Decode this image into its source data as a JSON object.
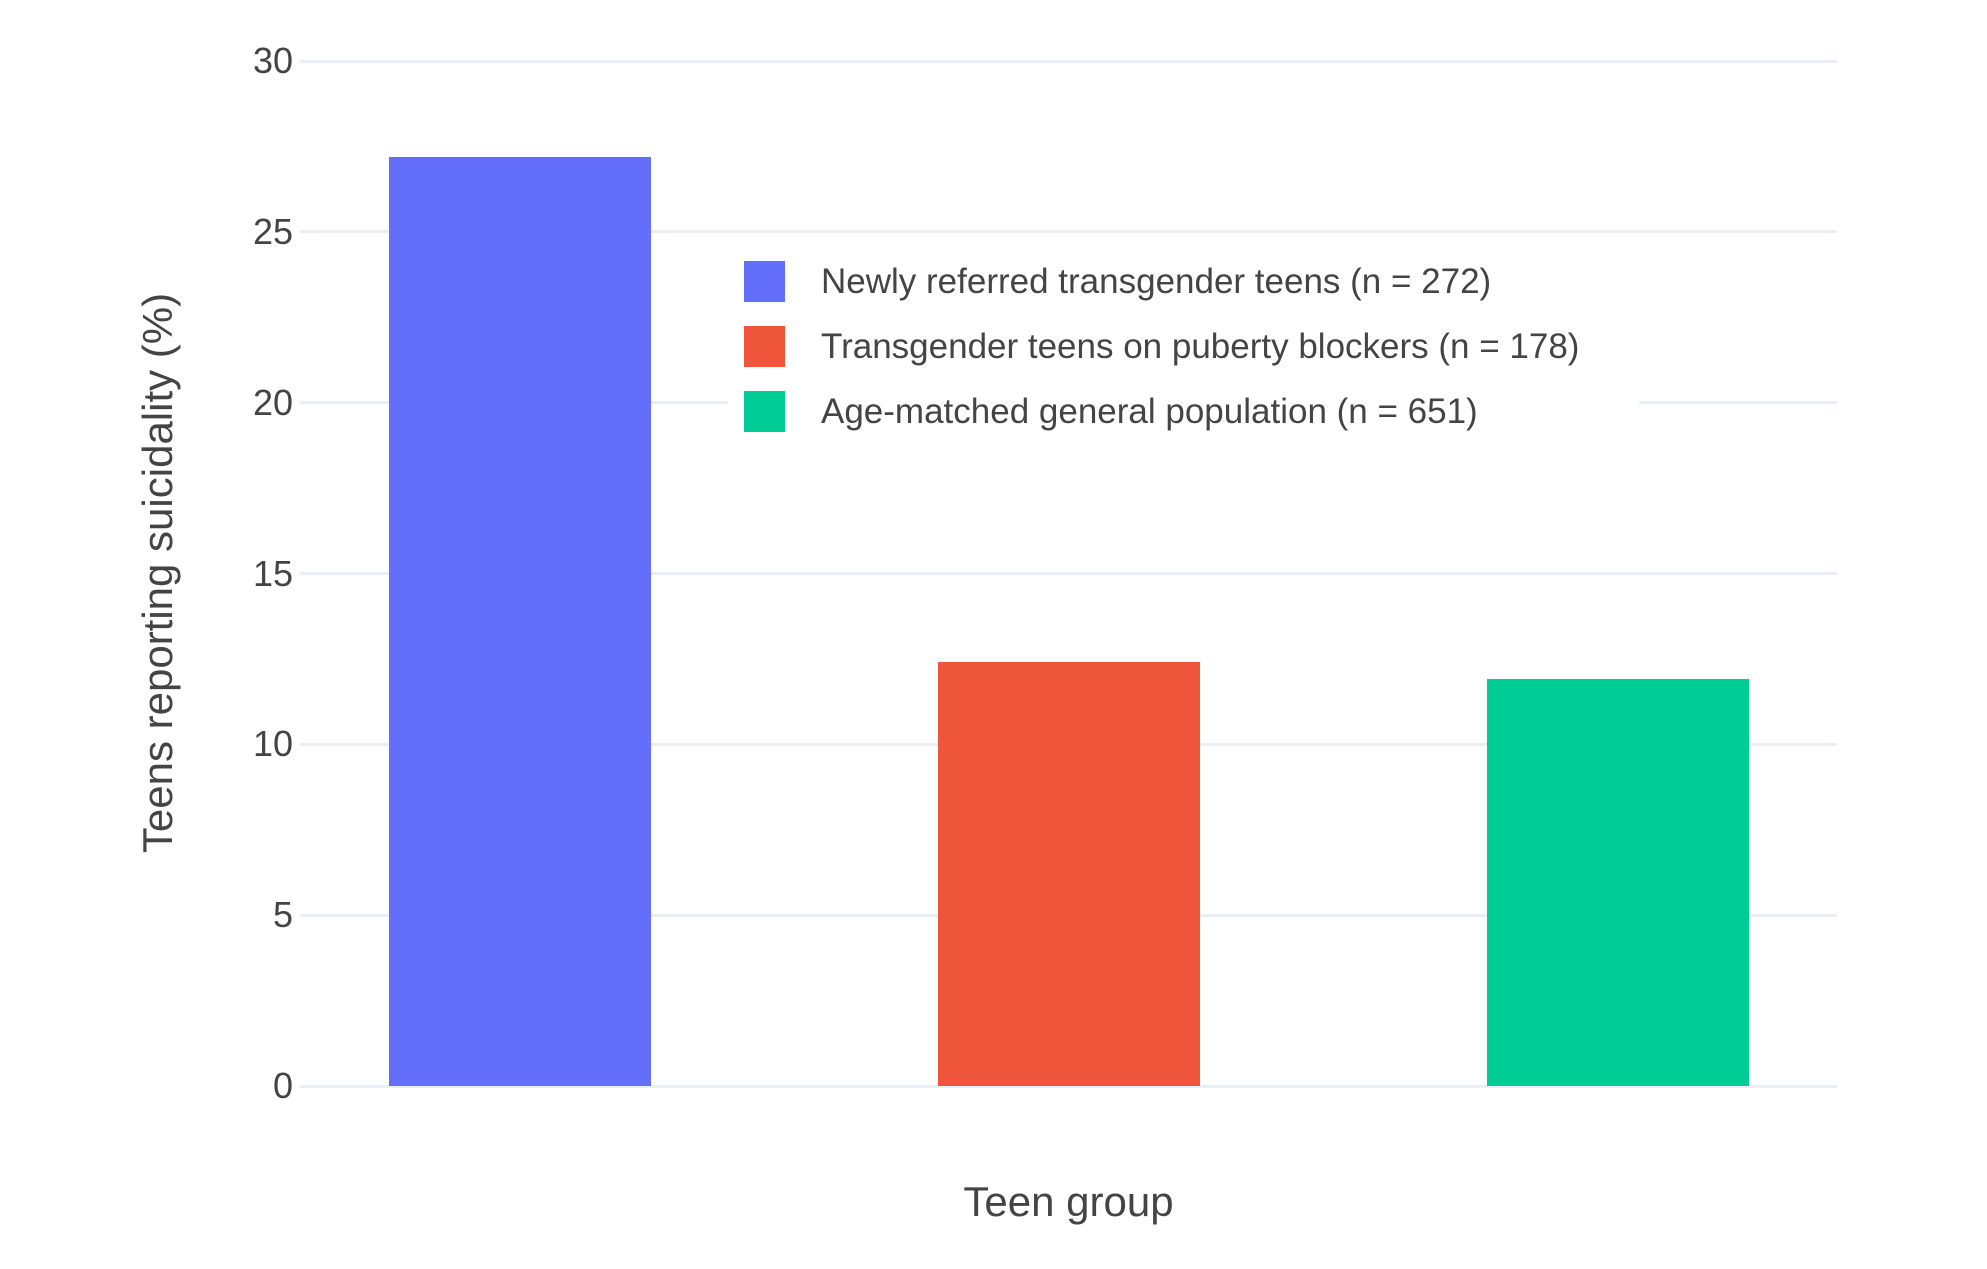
{
  "chart_data": {
    "type": "bar",
    "title": "",
    "xlabel": "Teen group",
    "ylabel": "Teens reporting suicidality (%)",
    "categories": [
      "Newly referred transgender teens",
      "Transgender teens on puberty blockers",
      "Age-matched general population"
    ],
    "values": [
      27.2,
      12.4,
      11.9
    ],
    "bar_colors": [
      "#636efa",
      "#ef553b",
      "#00cc96"
    ],
    "ylim": [
      0,
      30
    ],
    "yticks": [
      0,
      5,
      10,
      15,
      20,
      25,
      30
    ],
    "grid": true,
    "gridline_color": "#e9eef7",
    "background_color": "#ffffff",
    "text_color": "#444444",
    "legend": {
      "position": "inside-top-center",
      "entries": [
        {
          "label": "Newly referred transgender teens (n = 272)",
          "color": "#636efa"
        },
        {
          "label": "Transgender teens on puberty blockers (n = 178)",
          "color": "#ef553b"
        },
        {
          "label": "Age-matched general population (n = 651)",
          "color": "#00cc96"
        }
      ]
    }
  }
}
